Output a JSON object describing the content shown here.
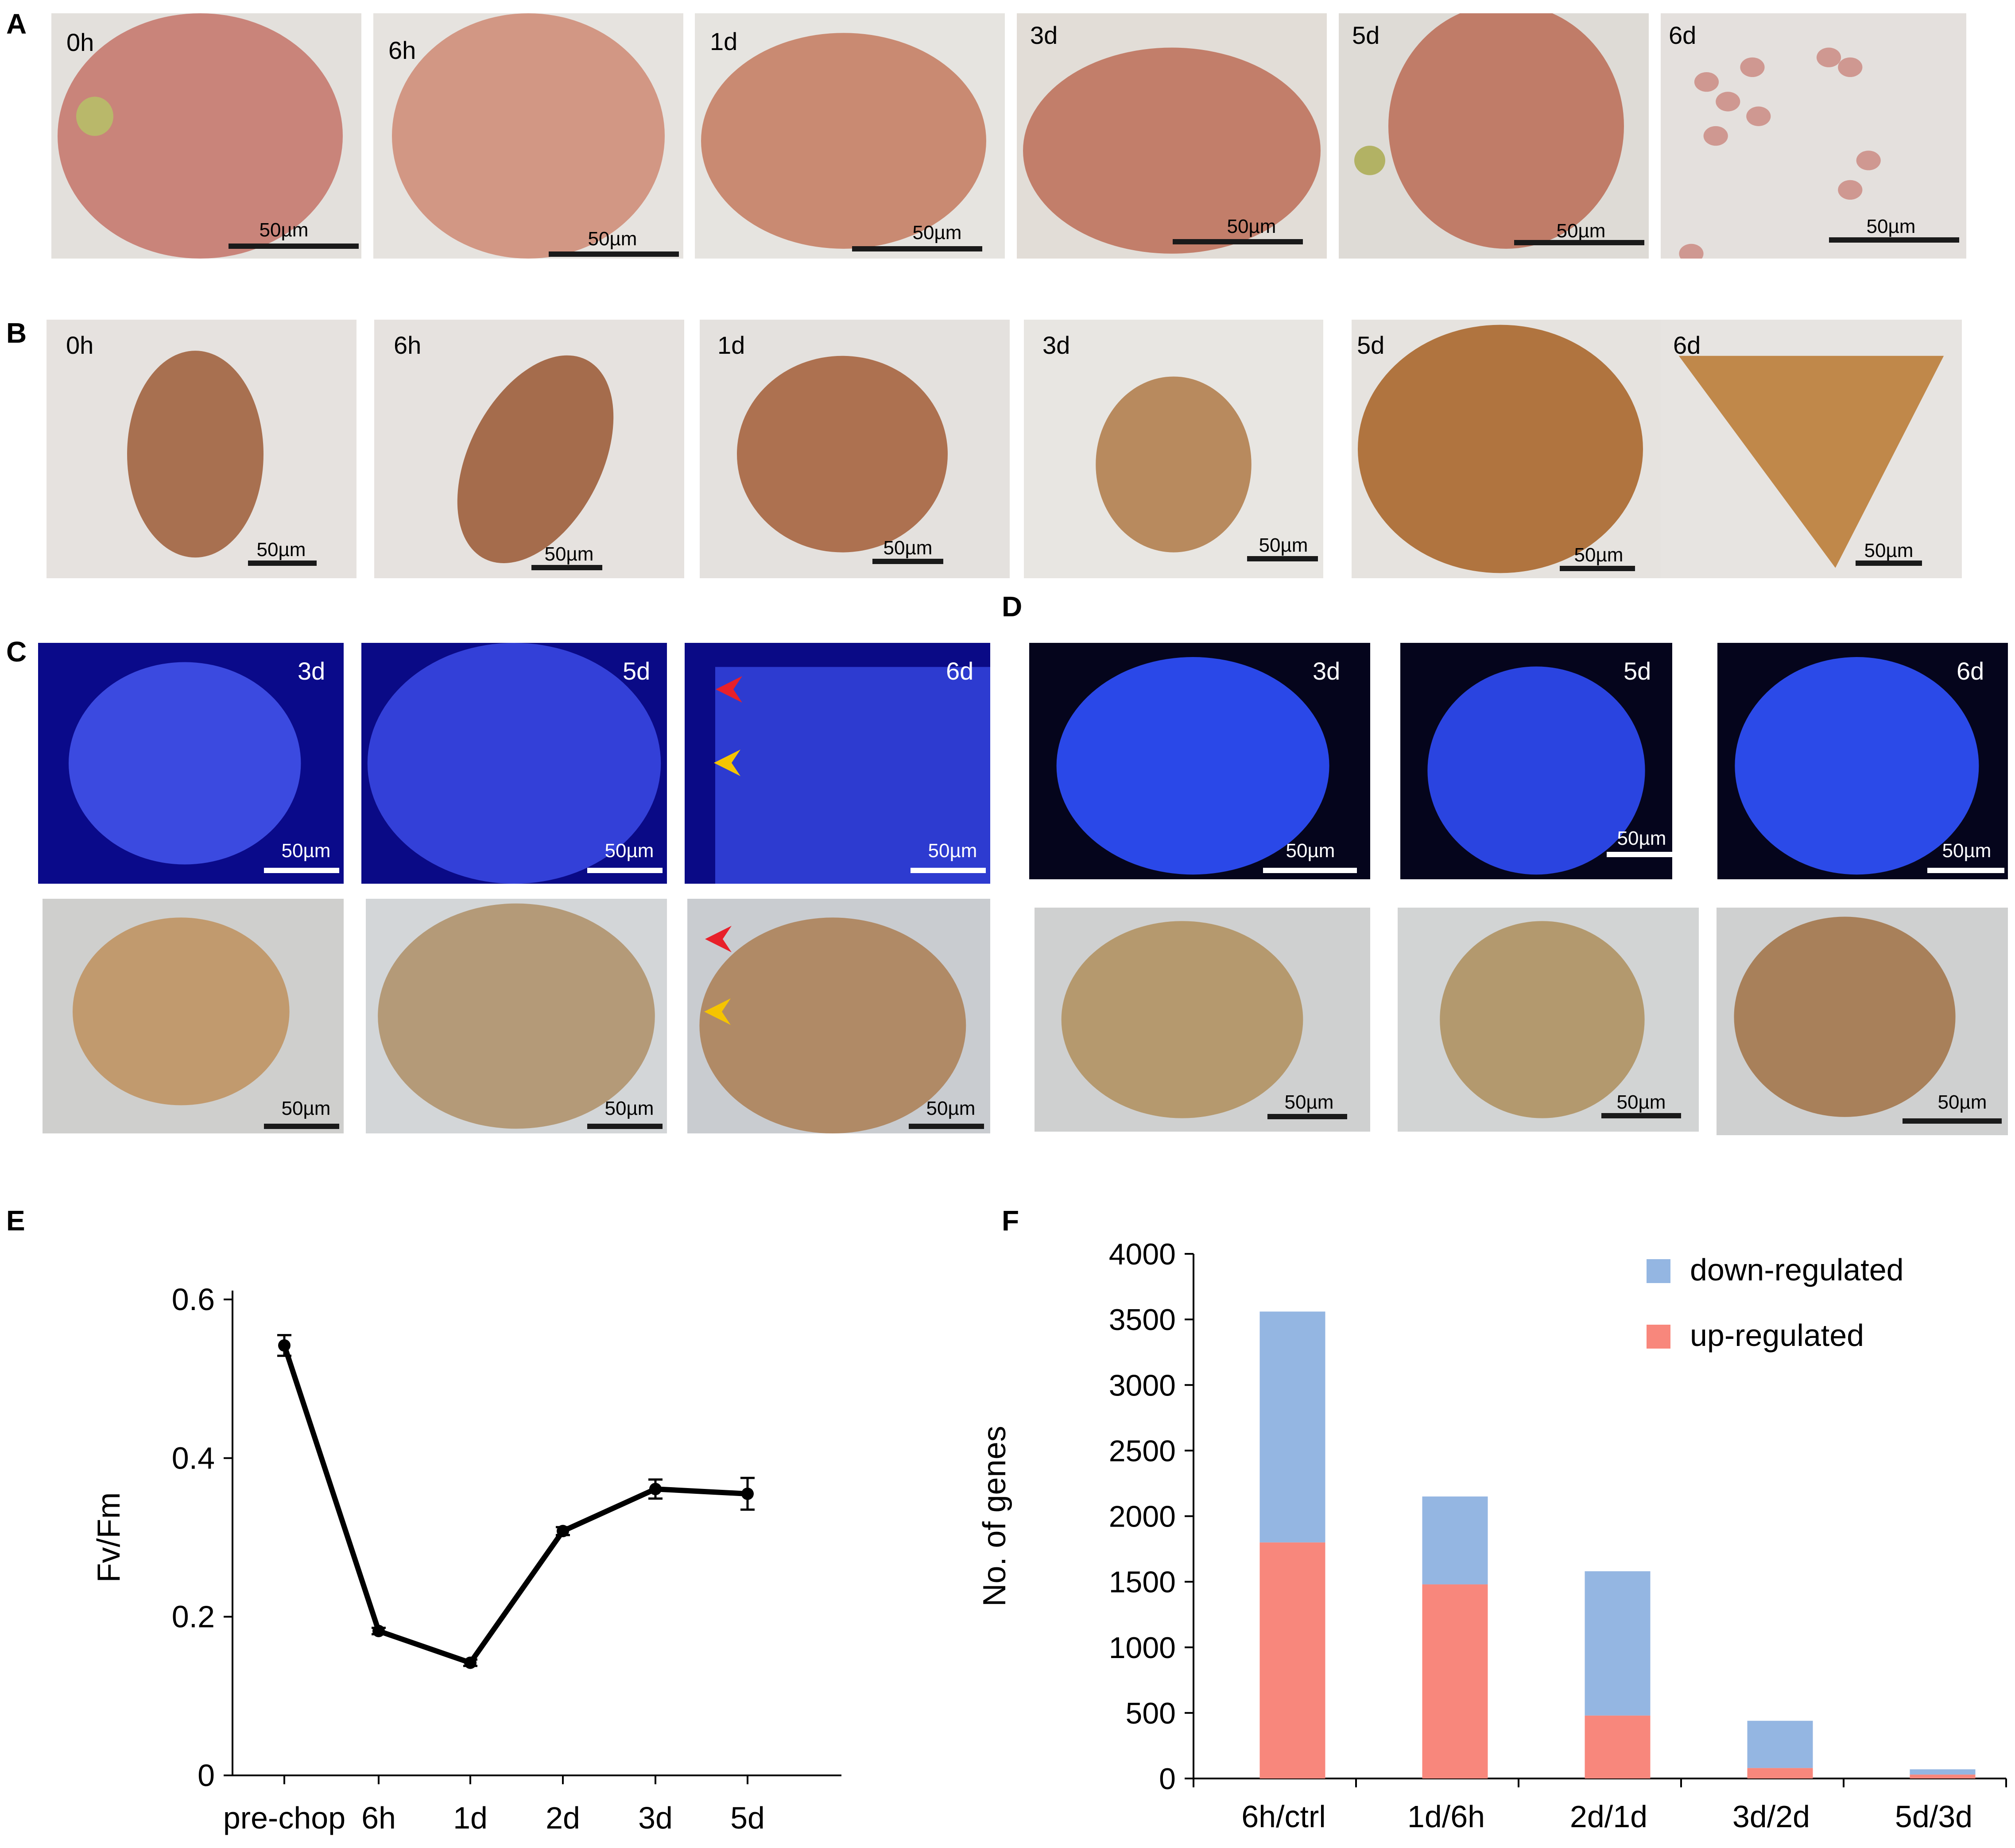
{
  "panels": {
    "A": {
      "label": "A",
      "images": [
        {
          "time": "0h",
          "scale": "50µm"
        },
        {
          "time": "6h",
          "scale": "50µm"
        },
        {
          "time": "1d",
          "scale": "50µm"
        },
        {
          "time": "3d",
          "scale": "50µm"
        },
        {
          "time": "5d",
          "scale": "50µm"
        },
        {
          "time": "6d",
          "scale": "50µm"
        }
      ]
    },
    "B": {
      "label": "B",
      "images": [
        {
          "time": "0h",
          "scale": "50µm"
        },
        {
          "time": "6h",
          "scale": "50µm"
        },
        {
          "time": "1d",
          "scale": "50µm"
        },
        {
          "time": "3d",
          "scale": "50µm"
        },
        {
          "time": "5d",
          "scale": "50µm"
        },
        {
          "time": "6d",
          "scale": "50µm"
        }
      ]
    },
    "C": {
      "label": "C",
      "fluorescence": [
        {
          "time": "3d",
          "scale": "50µm"
        },
        {
          "time": "5d",
          "scale": "50µm"
        },
        {
          "time": "6d",
          "scale": "50µm"
        }
      ],
      "brightfield": [
        {
          "scale": "50µm"
        },
        {
          "scale": "50µm"
        },
        {
          "scale": "50µm"
        }
      ]
    },
    "D": {
      "label": "D",
      "fluorescence": [
        {
          "time": "3d",
          "scale": "50µm"
        },
        {
          "time": "5d",
          "scale": "50µm"
        },
        {
          "time": "6d",
          "scale": "50µm"
        }
      ],
      "brightfield": [
        {
          "scale": "50µm"
        },
        {
          "scale": "50µm"
        },
        {
          "scale": "50µm"
        }
      ]
    },
    "E": {
      "label": "E"
    },
    "F": {
      "label": "F"
    }
  },
  "colors": {
    "red_arrow": "#e8202a",
    "yellow_arrow": "#f5c400",
    "down_regulated": "#94b6e2",
    "up_regulated": "#f8877c",
    "line": "#000000"
  },
  "chart_data": [
    {
      "id": "E",
      "type": "line",
      "title": "",
      "xlabel": "",
      "ylabel": "Fv/Fm",
      "categories": [
        "pre-chop",
        "6h",
        "1d",
        "2d",
        "3d",
        "5d"
      ],
      "values": [
        0.542,
        0.182,
        0.142,
        0.308,
        0.361,
        0.355
      ],
      "errors": [
        0.013,
        0.004,
        0.004,
        0.005,
        0.012,
        0.02
      ],
      "ylim": [
        0,
        0.6
      ],
      "yticks": [
        "0",
        "0.2",
        "0.4",
        "0.6"
      ],
      "grid": false
    },
    {
      "id": "F",
      "type": "bar",
      "stacked": true,
      "title": "",
      "xlabel": "",
      "ylabel": "No. of genes",
      "categories": [
        "6h/ctrl",
        "1d/6h",
        "2d/1d",
        "3d/2d",
        "5d/3d"
      ],
      "series": [
        {
          "name": "up-regulated",
          "values": [
            1800,
            1480,
            480,
            80,
            30
          ]
        },
        {
          "name": "down-regulated",
          "values": [
            1760,
            670,
            1100,
            360,
            40
          ]
        }
      ],
      "ylim": [
        0,
        4000
      ],
      "yticks": [
        "0",
        "500",
        "1000",
        "1500",
        "2000",
        "2500",
        "3000",
        "3500",
        "4000"
      ],
      "legend_position": "top-right",
      "grid": false
    }
  ]
}
